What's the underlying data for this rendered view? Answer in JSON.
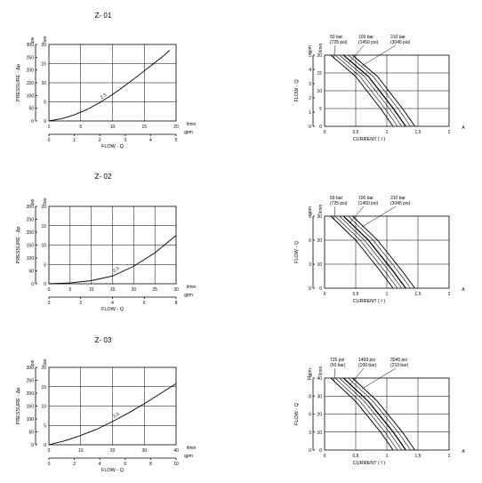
{
  "charts": [
    {
      "title": "Z- 01",
      "pressure": {
        "ylabel": "PRESSURE - Δp",
        "yunit_psi": "psi",
        "yunit_bar": "bar",
        "xlabel": "FLOW - Q",
        "xunit_lmin": "l/min",
        "xunit_gpm": "gpm",
        "bar_ticks": [
          "0",
          "5",
          "10",
          "15",
          "20"
        ],
        "psi_ticks": [
          "0",
          "50",
          "100",
          "150",
          "200",
          "250",
          "300"
        ],
        "lmin_ticks": [
          "0",
          "5",
          "10",
          "15",
          "20"
        ],
        "gpm_ticks": [
          "0",
          "1",
          "2",
          "3",
          "4",
          "5"
        ],
        "curve_label": "2.3"
      },
      "flow": {
        "ylabel": "FLOW - Q",
        "yunit_gpm": "gpm",
        "yunit_lmin": "l/min",
        "xlabel": "CURRENT ( I )",
        "xunit": "A",
        "gpm_ticks": [
          "0",
          "1",
          "2",
          "3",
          "4",
          "5"
        ],
        "lmin_ticks": [
          "0",
          "5",
          "10",
          "15",
          "20"
        ],
        "a_ticks": [
          "0",
          "0,5",
          "1",
          "1,5",
          "2"
        ],
        "labels": [
          [
            "50 bar",
            "(725 psi)"
          ],
          [
            "100 bar",
            "(1450 psi)"
          ],
          [
            "210 bar",
            "(3045 psi)"
          ]
        ]
      }
    },
    {
      "title": "Z- 02",
      "pressure": {
        "ylabel": "PRESSURE - Δp",
        "yunit_psi": "psi",
        "yunit_bar": "bar",
        "xlabel": "FLOW - Q",
        "xunit_lmin": "l/min",
        "xunit_gpm": "gpm",
        "bar_ticks": [
          "0",
          "5",
          "10",
          "15",
          "20"
        ],
        "psi_ticks": [
          "0",
          "50",
          "100",
          "150",
          "200",
          "250",
          "300"
        ],
        "lmin_ticks": [
          "0",
          "5",
          "10",
          "15",
          "20",
          "25",
          "30"
        ],
        "gpm_ticks": [
          "0",
          "2",
          "4",
          "6",
          "8"
        ],
        "curve_label": "2.3"
      },
      "flow": {
        "ylabel": "FLOW - Q",
        "yunit_gpm": "gpm",
        "yunit_lmin": "l/min",
        "xlabel": "CURRENT ( I )",
        "xunit": "A",
        "gpm_ticks": [
          "0",
          "3",
          "6",
          "8"
        ],
        "lmin_ticks": [
          "0",
          "10",
          "20",
          "30"
        ],
        "a_ticks": [
          "0",
          "0,5",
          "1",
          "1,5",
          "2"
        ],
        "labels": [
          [
            "50 bar",
            "(725 psi)"
          ],
          [
            "100 bar",
            "(1450 psi)"
          ],
          [
            "210 bar",
            "(3045 psi)"
          ]
        ]
      }
    },
    {
      "title": "Z- 03",
      "pressure": {
        "ylabel": "PRESSURE - Δp",
        "yunit_psi": "psi",
        "yunit_bar": "bar",
        "xlabel": "FLOW - Q",
        "xunit_lmin": "l/min",
        "xunit_gpm": "gpm",
        "bar_ticks": [
          "0",
          "5",
          "10",
          "15",
          "20"
        ],
        "psi_ticks": [
          "0",
          "50",
          "100",
          "150",
          "200",
          "250",
          "300"
        ],
        "lmin_ticks": [
          "0",
          "10",
          "20",
          "30",
          "40"
        ],
        "gpm_ticks": [
          "0",
          "2",
          "4",
          "6",
          "8",
          "10"
        ],
        "curve_label": "2.3"
      },
      "flow": {
        "ylabel": "FLOW - Q",
        "yunit_gpm": "gpm",
        "yunit_lmin": "l/min",
        "xlabel": "CURRENT ( I )",
        "xunit": "A",
        "gpm_ticks": [
          "0",
          "3",
          "6",
          "8",
          "11"
        ],
        "lmin_ticks": [
          "0",
          "10",
          "20",
          "30",
          "40"
        ],
        "a_ticks": [
          "0",
          "0,5",
          "1",
          "1,5",
          "2"
        ],
        "labels": [
          [
            "725 psi",
            "(50 bar)"
          ],
          [
            "1450 psi",
            "(100 bar)"
          ],
          [
            "3045 psi",
            "(210 bar)"
          ]
        ]
      }
    }
  ],
  "chart_data": [
    {
      "type": "line",
      "title": "Z- 01",
      "xlabel": "FLOW - Q",
      "ylabel": "PRESSURE - Δp",
      "xlim": [
        0,
        20
      ],
      "ylim": [
        0,
        20
      ],
      "series": [
        {
          "name": "2.3",
          "x": [
            0,
            2,
            4,
            6,
            8,
            10,
            12,
            14,
            16,
            18,
            19
          ],
          "y": [
            0,
            0.6,
            1.6,
            3.0,
            4.8,
            6.9,
            9.3,
            11.8,
            14.4,
            17.0,
            18.5
          ]
        }
      ]
    },
    {
      "type": "line",
      "title": "Z- 01",
      "xlabel": "CURRENT ( I )",
      "ylabel": "FLOW - Q",
      "xlim": [
        0,
        2
      ],
      "ylim": [
        0,
        20
      ],
      "series": [
        {
          "name": "50 bar",
          "x": [
            0.1,
            0.5,
            0.9,
            1.1
          ],
          "y": [
            20,
            14,
            5,
            0
          ]
        },
        {
          "name": "100 bar",
          "x": [
            0.3,
            0.7,
            1.1,
            1.3
          ],
          "y": [
            20,
            14,
            5,
            0
          ]
        },
        {
          "name": "210 bar",
          "x": [
            0.45,
            0.85,
            1.25,
            1.45
          ],
          "y": [
            20,
            14,
            5,
            0
          ]
        }
      ]
    },
    {
      "type": "line",
      "title": "Z- 02",
      "xlabel": "FLOW - Q",
      "ylabel": "PRESSURE - Δp",
      "xlim": [
        0,
        30
      ],
      "ylim": [
        0,
        20
      ],
      "series": [
        {
          "name": "2.3",
          "x": [
            0,
            5,
            10,
            15,
            20,
            25,
            30
          ],
          "y": [
            0,
            0.2,
            0.8,
            2.0,
            4.5,
            8.0,
            12.5
          ]
        }
      ]
    },
    {
      "type": "line",
      "title": "Z- 02",
      "xlabel": "CURRENT ( I )",
      "ylabel": "FLOW - Q",
      "xlim": [
        0,
        2
      ],
      "ylim": [
        0,
        30
      ],
      "series": [
        {
          "name": "50 bar",
          "x": [
            0.1,
            0.5,
            0.9,
            1.1
          ],
          "y": [
            30,
            20,
            7,
            0
          ]
        },
        {
          "name": "100 bar",
          "x": [
            0.3,
            0.7,
            1.1,
            1.3
          ],
          "y": [
            30,
            20,
            7,
            0
          ]
        },
        {
          "name": "210 bar",
          "x": [
            0.45,
            0.85,
            1.25,
            1.45
          ],
          "y": [
            30,
            20,
            7,
            0
          ]
        }
      ]
    },
    {
      "type": "line",
      "title": "Z- 03",
      "xlabel": "FLOW - Q",
      "ylabel": "PRESSURE - Δp",
      "xlim": [
        0,
        40
      ],
      "ylim": [
        0,
        20
      ],
      "series": [
        {
          "name": "2.3",
          "x": [
            0,
            5,
            10,
            15,
            20,
            25,
            30,
            35,
            40
          ],
          "y": [
            0,
            1.0,
            2.4,
            4.0,
            6.0,
            8.2,
            10.6,
            13.2,
            15.8
          ]
        }
      ]
    },
    {
      "type": "line",
      "title": "Z- 03",
      "xlabel": "CURRENT ( I )",
      "ylabel": "FLOW - Q",
      "xlim": [
        0,
        2
      ],
      "ylim": [
        0,
        40
      ],
      "series": [
        {
          "name": "725 psi",
          "x": [
            0.1,
            0.5,
            0.9,
            1.1
          ],
          "y": [
            40,
            27,
            10,
            0
          ]
        },
        {
          "name": "1450 psi",
          "x": [
            0.3,
            0.7,
            1.1,
            1.3
          ],
          "y": [
            40,
            27,
            10,
            0
          ]
        },
        {
          "name": "3045 psi",
          "x": [
            0.45,
            0.85,
            1.25,
            1.45
          ],
          "y": [
            40,
            27,
            10,
            0
          ]
        }
      ]
    }
  ]
}
